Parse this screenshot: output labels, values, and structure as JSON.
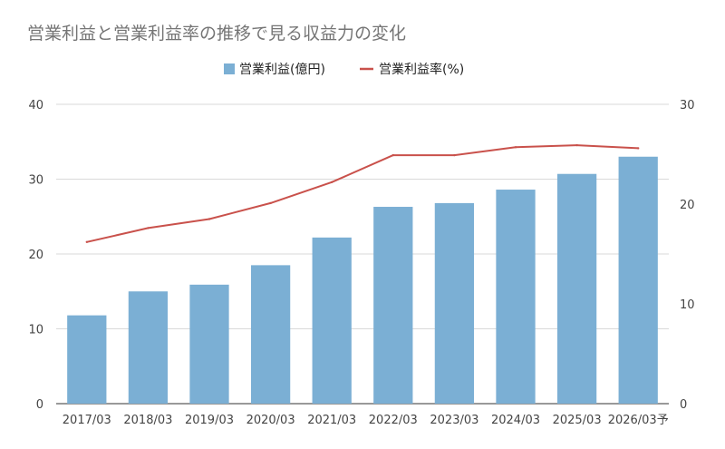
{
  "chart_data": {
    "type": "bar+line",
    "title": "営業利益と営業利益率の推移で見る収益力の変化",
    "categories": [
      "2017/03",
      "2018/03",
      "2019/03",
      "2020/03",
      "2021/03",
      "2022/03",
      "2023/03",
      "2024/03",
      "2025/03",
      "2026/03予"
    ],
    "series": [
      {
        "name": "営業利益(億円)",
        "type": "bar",
        "axis": "left",
        "color": "#7bafd4",
        "values": [
          11.8,
          15.0,
          15.9,
          18.5,
          22.2,
          26.3,
          26.8,
          28.6,
          30.7,
          33.0
        ]
      },
      {
        "name": "営業利益率(%)",
        "type": "line",
        "axis": "right",
        "color": "#c9514b",
        "values": [
          16.2,
          17.6,
          18.5,
          20.1,
          22.2,
          24.9,
          24.9,
          25.7,
          25.9,
          25.6
        ]
      }
    ],
    "y_left": {
      "min": 0,
      "max": 40,
      "ticks": [
        0,
        10,
        20,
        30,
        40
      ]
    },
    "y_right": {
      "min": 0,
      "max": 30,
      "ticks": [
        0,
        10,
        20,
        30
      ]
    },
    "grid": true,
    "legend": "top-center"
  }
}
